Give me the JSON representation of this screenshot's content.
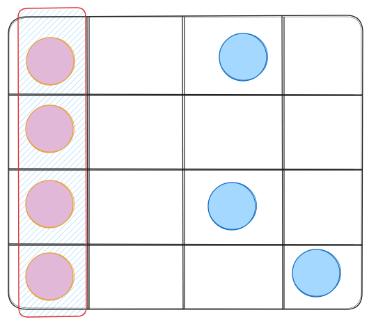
{
  "grid": {
    "rows": 4,
    "columns": 4,
    "highlighted_column": 0
  },
  "colors": {
    "grid_line": "#1e1e1e",
    "highlight_border": "#e03131",
    "highlight_hatch": "#a5d8ff",
    "pink_fill": "#e2b8d8",
    "pink_stroke": "#e8a13a",
    "blue_fill": "#a5d8ff",
    "blue_stroke": "#1971c2"
  },
  "pieces": [
    {
      "row": 0,
      "col": 0,
      "color": "pink"
    },
    {
      "row": 1,
      "col": 0,
      "color": "pink"
    },
    {
      "row": 2,
      "col": 0,
      "color": "pink"
    },
    {
      "row": 3,
      "col": 0,
      "color": "pink"
    },
    {
      "row": 0,
      "col": 2,
      "color": "blue"
    },
    {
      "row": 2,
      "col": 2,
      "color": "blue"
    },
    {
      "row": 3,
      "col": 3,
      "color": "blue"
    }
  ]
}
